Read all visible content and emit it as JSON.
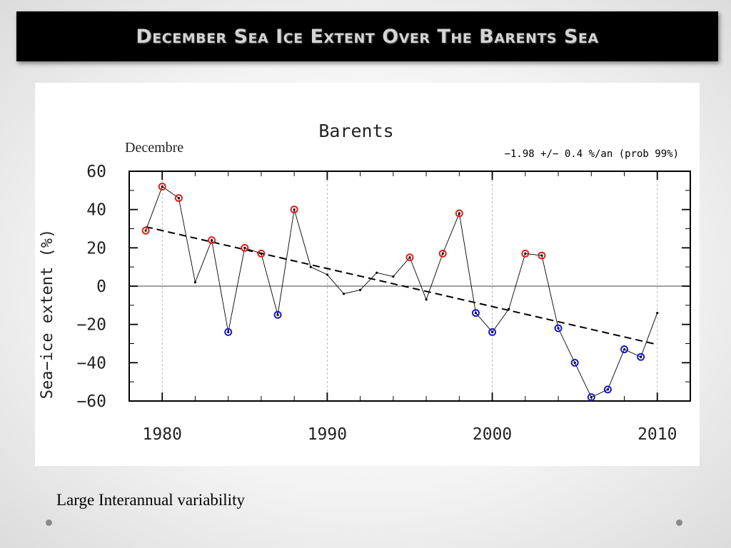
{
  "slide": {
    "title": "December Sea Ice Extent Over The Barents Sea",
    "caption": "Large Interannual variability"
  },
  "chart_data": {
    "type": "line",
    "title": "Barents",
    "subtitle": "Decembre",
    "annotation": "−1.98 +/− 0.4 %/an (prob 99%)",
    "ylabel": "Sea−ice extent (%)",
    "xlabel": "",
    "xlim": [
      1978,
      2012
    ],
    "ylim": [
      -60,
      60
    ],
    "xticks": [
      "1980",
      "1990",
      "2000",
      "2010"
    ],
    "yticks": [
      "60",
      "40",
      "20",
      "0",
      "−20",
      "−40",
      "−60"
    ],
    "grid": "vertical dashed at 1980, 1990, 2000, 2010",
    "colors": {
      "line": "#000000",
      "above": "#e0201c",
      "below": "#1a1ad0",
      "trend": "#000000"
    },
    "series": [
      {
        "x": [
          1979,
          1980,
          1981,
          1982,
          1983,
          1984,
          1985,
          1986,
          1987,
          1988,
          1989,
          1990,
          1991,
          1992,
          1993,
          1994,
          1995,
          1996,
          1997,
          1998,
          1999,
          2000,
          2001,
          2002,
          2003,
          2004,
          2005,
          2006,
          2007,
          2008,
          2009,
          2010
        ],
        "values": [
          29,
          52,
          46,
          2,
          24,
          -24,
          20,
          17,
          -15,
          40,
          10,
          6,
          -4,
          -2,
          7,
          5,
          15,
          -7,
          17,
          38,
          -14,
          -24,
          -12,
          17,
          16,
          -22,
          -40,
          -58,
          -54,
          -33,
          -37,
          -14
        ],
        "markers": [
          "red",
          "red",
          "red",
          "none",
          "red",
          "blue",
          "red",
          "red",
          "blue",
          "red",
          "none",
          "none",
          "none",
          "none",
          "none",
          "none",
          "red",
          "none",
          "red",
          "red",
          "blue",
          "blue",
          "none",
          "red",
          "red",
          "blue",
          "blue",
          "blue",
          "blue",
          "blue",
          "blue",
          "none"
        ]
      }
    ],
    "trend": {
      "x": [
        1979,
        2010
      ],
      "values": [
        31,
        -30.5
      ]
    }
  }
}
